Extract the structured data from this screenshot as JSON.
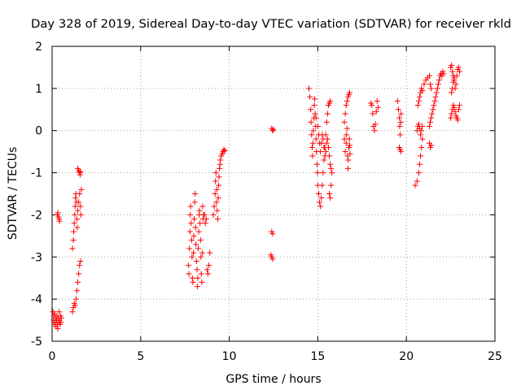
{
  "chart_data": {
    "type": "scatter",
    "title": "Day 328 of 2019, Sidereal Day-to-day VTEC variation (SDTVAR) for receiver rkld",
    "xlabel": "GPS time / hours",
    "ylabel": "SDTVAR / TECUs",
    "xlim": [
      0,
      25
    ],
    "ylim": [
      -5,
      2
    ],
    "xticks": [
      0,
      5,
      10,
      15,
      20,
      25
    ],
    "xtick_labels": [
      "0",
      "5",
      "10",
      "15",
      "20",
      "25"
    ],
    "yticks": [
      -5,
      -4,
      -3,
      -2,
      -1,
      0,
      1,
      2
    ],
    "ytick_labels": [
      "-5",
      "-4",
      "-3",
      "-2",
      "-1",
      "0",
      "1",
      "2"
    ],
    "grid": true,
    "marker": "+",
    "color": "#ff0000",
    "series": [
      {
        "name": "SDTVAR",
        "points": [
          [
            0.05,
            -4.3
          ],
          [
            0.08,
            -4.5
          ],
          [
            0.1,
            -4.4
          ],
          [
            0.12,
            -4.6
          ],
          [
            0.15,
            -4.35
          ],
          [
            0.18,
            -4.55
          ],
          [
            0.2,
            -4.45
          ],
          [
            0.22,
            -4.65
          ],
          [
            0.25,
            -4.5
          ],
          [
            0.28,
            -4.4
          ],
          [
            0.3,
            -4.6
          ],
          [
            0.32,
            -4.7
          ],
          [
            0.35,
            -4.45
          ],
          [
            0.38,
            -4.55
          ],
          [
            0.4,
            -4.3
          ],
          [
            0.42,
            -4.5
          ],
          [
            0.45,
            -4.6
          ],
          [
            0.48,
            -4.4
          ],
          [
            0.5,
            -4.55
          ],
          [
            0.52,
            -4.45
          ],
          [
            0.3,
            -2.0
          ],
          [
            0.33,
            -1.95
          ],
          [
            0.36,
            -2.05
          ],
          [
            0.4,
            -2.1
          ],
          [
            0.42,
            -2.15
          ],
          [
            1.15,
            -4.3
          ],
          [
            1.2,
            -4.2
          ],
          [
            1.25,
            -4.1
          ],
          [
            1.3,
            -4.15
          ],
          [
            1.35,
            -4.0
          ],
          [
            1.4,
            -3.8
          ],
          [
            1.45,
            -3.6
          ],
          [
            1.5,
            -3.4
          ],
          [
            1.55,
            -3.2
          ],
          [
            1.6,
            -3.1
          ],
          [
            1.15,
            -2.8
          ],
          [
            1.2,
            -2.6
          ],
          [
            1.22,
            -2.4
          ],
          [
            1.25,
            -2.2
          ],
          [
            1.28,
            -2.0
          ],
          [
            1.3,
            -1.8
          ],
          [
            1.32,
            -1.6
          ],
          [
            1.35,
            -1.5
          ],
          [
            1.38,
            -1.7
          ],
          [
            1.4,
            -2.1
          ],
          [
            1.42,
            -2.3
          ],
          [
            1.45,
            -1.9
          ],
          [
            1.5,
            -1.7
          ],
          [
            1.55,
            -1.5
          ],
          [
            1.6,
            -1.8
          ],
          [
            1.62,
            -2.0
          ],
          [
            1.65,
            -1.4
          ],
          [
            1.45,
            -0.9
          ],
          [
            1.5,
            -0.95
          ],
          [
            1.55,
            -1.0
          ],
          [
            1.58,
            -1.05
          ],
          [
            1.6,
            -0.98
          ],
          [
            7.7,
            -3.2
          ],
          [
            7.72,
            -3.4
          ],
          [
            7.75,
            -2.8
          ],
          [
            7.78,
            -2.4
          ],
          [
            7.8,
            -2.0
          ],
          [
            7.82,
            -1.8
          ],
          [
            7.85,
            -2.2
          ],
          [
            7.88,
            -2.6
          ],
          [
            7.9,
            -3.0
          ],
          [
            7.92,
            -3.5
          ],
          [
            7.95,
            -3.6
          ],
          [
            7.98,
            -2.9
          ],
          [
            8.0,
            -2.5
          ],
          [
            8.02,
            -2.1
          ],
          [
            8.05,
            -1.7
          ],
          [
            8.08,
            -1.5
          ],
          [
            8.1,
            -2.3
          ],
          [
            8.12,
            -2.7
          ],
          [
            8.15,
            -3.1
          ],
          [
            8.18,
            -3.3
          ],
          [
            8.2,
            -3.7
          ],
          [
            8.22,
            -3.5
          ],
          [
            8.25,
            -2.8
          ],
          [
            8.28,
            -2.4
          ],
          [
            8.3,
            -2.0
          ],
          [
            8.32,
            -1.9
          ],
          [
            8.35,
            -2.2
          ],
          [
            8.38,
            -2.6
          ],
          [
            8.4,
            -3.0
          ],
          [
            8.42,
            -3.4
          ],
          [
            8.45,
            -3.6
          ],
          [
            8.48,
            -2.9
          ],
          [
            8.5,
            -1.8
          ],
          [
            8.52,
            -2.1
          ],
          [
            8.55,
            -2.0
          ],
          [
            8.6,
            -2.0
          ],
          [
            8.65,
            -2.2
          ],
          [
            8.7,
            -2.1
          ],
          [
            8.75,
            -3.3
          ],
          [
            8.8,
            -3.4
          ],
          [
            8.85,
            -3.2
          ],
          [
            8.9,
            -2.9
          ],
          [
            9.1,
            -2.0
          ],
          [
            9.15,
            -1.8
          ],
          [
            9.2,
            -1.5
          ],
          [
            9.22,
            -1.2
          ],
          [
            9.25,
            -1.0
          ],
          [
            9.28,
            -1.7
          ],
          [
            9.3,
            -1.4
          ],
          [
            9.32,
            -1.9
          ],
          [
            9.35,
            -2.1
          ],
          [
            9.38,
            -1.6
          ],
          [
            9.4,
            -1.3
          ],
          [
            9.42,
            -1.1
          ],
          [
            9.45,
            -0.9
          ],
          [
            9.48,
            -0.8
          ],
          [
            9.5,
            -0.7
          ],
          [
            9.55,
            -0.6
          ],
          [
            9.6,
            -0.55
          ],
          [
            9.65,
            -0.5
          ],
          [
            9.7,
            -0.45
          ],
          [
            9.75,
            -0.48
          ],
          [
            12.4,
            0.05
          ],
          [
            12.45,
            0.0
          ],
          [
            12.5,
            0.02
          ],
          [
            12.4,
            -2.4
          ],
          [
            12.45,
            -2.45
          ],
          [
            12.35,
            -2.95
          ],
          [
            12.4,
            -3.0
          ],
          [
            12.45,
            -3.05
          ],
          [
            14.5,
            1.0
          ],
          [
            14.55,
            0.8
          ],
          [
            14.6,
            0.5
          ],
          [
            14.62,
            0.2
          ],
          [
            14.65,
            -0.1
          ],
          [
            14.68,
            -0.4
          ],
          [
            14.7,
            -0.6
          ],
          [
            14.72,
            -0.3
          ],
          [
            14.75,
            0.0
          ],
          [
            14.78,
            0.3
          ],
          [
            14.8,
            0.6
          ],
          [
            14.82,
            0.75
          ],
          [
            14.85,
            0.4
          ],
          [
            14.88,
            0.1
          ],
          [
            14.9,
            -0.2
          ],
          [
            14.92,
            -0.5
          ],
          [
            14.95,
            -0.8
          ],
          [
            14.98,
            -1.0
          ],
          [
            15.0,
            -1.3
          ],
          [
            15.05,
            -1.5
          ],
          [
            15.1,
            -1.7
          ],
          [
            15.15,
            -1.8
          ],
          [
            15.2,
            -1.6
          ],
          [
            15.25,
            -1.3
          ],
          [
            15.3,
            -1.0
          ],
          [
            15.35,
            -0.7
          ],
          [
            15.4,
            -0.4
          ],
          [
            15.45,
            -0.1
          ],
          [
            15.5,
            0.2
          ],
          [
            15.55,
            0.4
          ],
          [
            15.6,
            0.6
          ],
          [
            15.65,
            0.65
          ],
          [
            15.7,
            0.7
          ],
          [
            14.9,
            0.3
          ],
          [
            15.0,
            0.1
          ],
          [
            15.05,
            -0.1
          ],
          [
            15.1,
            -0.3
          ],
          [
            15.15,
            -0.5
          ],
          [
            15.2,
            -0.3
          ],
          [
            15.25,
            -0.1
          ],
          [
            15.3,
            -0.2
          ],
          [
            15.35,
            -0.4
          ],
          [
            15.4,
            -0.6
          ],
          [
            15.45,
            -0.5
          ],
          [
            15.5,
            -0.3
          ],
          [
            15.55,
            -0.2
          ],
          [
            15.6,
            -0.4
          ],
          [
            15.65,
            -0.6
          ],
          [
            15.7,
            -0.8
          ],
          [
            15.75,
            -0.9
          ],
          [
            15.8,
            -1.0
          ],
          [
            15.75,
            -1.3
          ],
          [
            15.7,
            -1.6
          ],
          [
            15.65,
            -1.5
          ],
          [
            16.5,
            -0.2
          ],
          [
            16.55,
            -0.5
          ],
          [
            16.6,
            -0.3
          ],
          [
            16.62,
            -0.1
          ],
          [
            16.65,
            0.05
          ],
          [
            16.68,
            -0.6
          ],
          [
            16.7,
            -0.9
          ],
          [
            16.72,
            -0.7
          ],
          [
            16.75,
            -0.4
          ],
          [
            16.78,
            -0.2
          ],
          [
            16.8,
            -0.35
          ],
          [
            16.82,
            -0.55
          ],
          [
            16.5,
            0.2
          ],
          [
            16.55,
            0.4
          ],
          [
            16.6,
            0.6
          ],
          [
            16.65,
            0.7
          ],
          [
            16.7,
            0.8
          ],
          [
            16.75,
            0.85
          ],
          [
            16.8,
            0.9
          ],
          [
            18.0,
            0.65
          ],
          [
            18.05,
            0.6
          ],
          [
            18.1,
            0.4
          ],
          [
            18.15,
            0.1
          ],
          [
            18.2,
            0.0
          ],
          [
            18.25,
            0.15
          ],
          [
            18.3,
            0.45
          ],
          [
            18.35,
            0.7
          ],
          [
            18.4,
            0.55
          ],
          [
            19.5,
            0.7
          ],
          [
            19.55,
            0.5
          ],
          [
            19.6,
            0.3
          ],
          [
            19.62,
            0.1
          ],
          [
            19.65,
            -0.1
          ],
          [
            19.68,
            0.2
          ],
          [
            19.7,
            0.4
          ],
          [
            19.6,
            -0.4
          ],
          [
            19.65,
            -0.45
          ],
          [
            19.7,
            -0.5
          ],
          [
            20.5,
            -1.3
          ],
          [
            20.6,
            -1.2
          ],
          [
            20.7,
            -1.0
          ],
          [
            20.75,
            -0.8
          ],
          [
            20.8,
            -0.6
          ],
          [
            20.85,
            -0.4
          ],
          [
            20.9,
            -0.2
          ],
          [
            20.6,
            0.0
          ],
          [
            20.65,
            0.1
          ],
          [
            20.7,
            0.15
          ],
          [
            20.75,
            0.05
          ],
          [
            20.8,
            -0.1
          ],
          [
            20.85,
            0.0
          ],
          [
            20.9,
            0.1
          ],
          [
            20.65,
            0.6
          ],
          [
            20.7,
            0.7
          ],
          [
            20.75,
            0.8
          ],
          [
            20.8,
            0.9
          ],
          [
            20.85,
            1.0
          ],
          [
            20.9,
            0.95
          ],
          [
            21.0,
            1.1
          ],
          [
            21.1,
            1.2
          ],
          [
            21.2,
            1.25
          ],
          [
            21.3,
            1.3
          ],
          [
            21.35,
            1.1
          ],
          [
            21.4,
            1.0
          ],
          [
            21.3,
            0.1
          ],
          [
            21.35,
            0.2
          ],
          [
            21.4,
            0.3
          ],
          [
            21.45,
            0.4
          ],
          [
            21.5,
            0.5
          ],
          [
            21.55,
            0.6
          ],
          [
            21.6,
            0.7
          ],
          [
            21.65,
            0.8
          ],
          [
            21.7,
            0.9
          ],
          [
            21.75,
            1.0
          ],
          [
            21.8,
            1.1
          ],
          [
            21.85,
            1.2
          ],
          [
            21.9,
            1.3
          ],
          [
            21.95,
            1.35
          ],
          [
            21.3,
            -0.3
          ],
          [
            21.35,
            -0.4
          ],
          [
            21.4,
            -0.35
          ],
          [
            22.0,
            1.3
          ],
          [
            22.05,
            1.4
          ],
          [
            22.1,
            1.35
          ],
          [
            22.5,
            1.5
          ],
          [
            22.55,
            1.55
          ],
          [
            22.6,
            1.4
          ],
          [
            22.65,
            1.3
          ],
          [
            22.7,
            1.2
          ],
          [
            22.75,
            1.0
          ],
          [
            22.8,
            1.1
          ],
          [
            22.85,
            1.3
          ],
          [
            22.9,
            1.45
          ],
          [
            22.95,
            1.5
          ],
          [
            23.0,
            1.4
          ],
          [
            22.55,
            0.9
          ],
          [
            22.6,
            1.0
          ],
          [
            22.65,
            1.15
          ],
          [
            22.7,
            1.25
          ],
          [
            22.5,
            0.3
          ],
          [
            22.55,
            0.4
          ],
          [
            22.6,
            0.5
          ],
          [
            22.65,
            0.6
          ],
          [
            22.7,
            0.55
          ],
          [
            22.75,
            0.45
          ],
          [
            22.8,
            0.35
          ],
          [
            22.85,
            0.3
          ],
          [
            22.9,
            0.25
          ],
          [
            22.95,
            0.5
          ],
          [
            23.0,
            0.6
          ]
        ]
      }
    ]
  }
}
